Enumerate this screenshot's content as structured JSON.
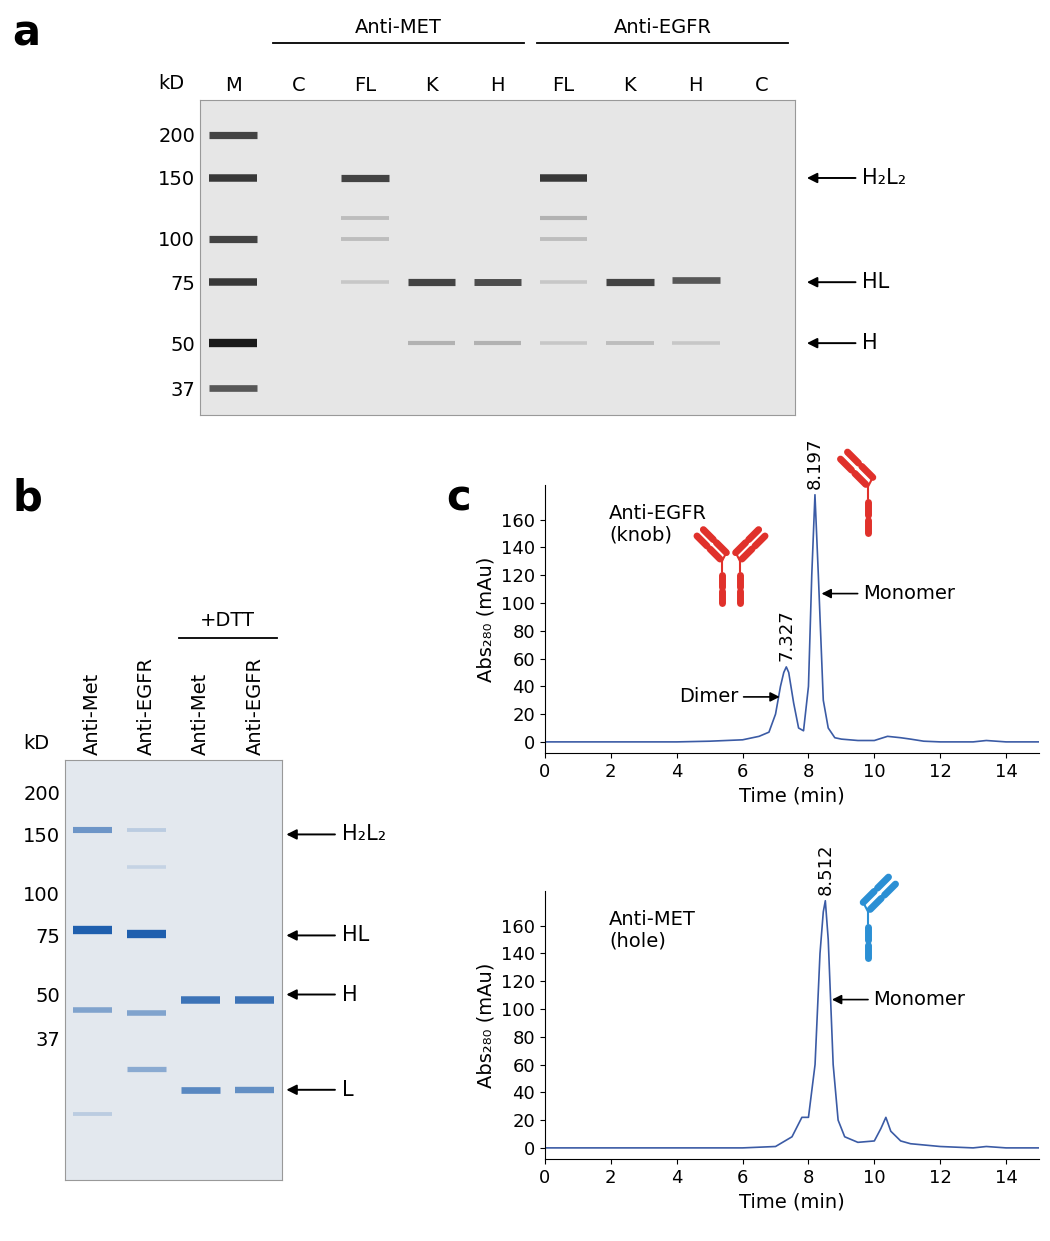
{
  "chart_data": [
    {
      "panel": "a",
      "type": "gel",
      "ylabel": "kD",
      "categories": [
        "M",
        "C",
        "FL",
        "K",
        "H",
        "FL",
        "K",
        "H",
        "C"
      ],
      "lane_groups": [
        {
          "label": "Anti-MET",
          "first": 1,
          "last": 4
        },
        {
          "label": "Anti-EGFR",
          "first": 5,
          "last": 8
        }
      ],
      "log": "y",
      "ylim": [
        31,
        252
      ],
      "yticks": [
        37,
        50,
        75,
        100,
        150,
        200
      ],
      "color": "#1a1a1a",
      "bands": [
        {
          "lane": 0,
          "kd": 200,
          "intensity": 0.8
        },
        {
          "lane": 0,
          "kd": 150,
          "intensity": 0.85
        },
        {
          "lane": 0,
          "kd": 100,
          "intensity": 0.8
        },
        {
          "lane": 0,
          "kd": 75,
          "intensity": 0.85
        },
        {
          "lane": 0,
          "kd": 50,
          "intensity": 1.0
        },
        {
          "lane": 0,
          "kd": 37,
          "intensity": 0.7
        },
        {
          "lane": 2,
          "kd": 150,
          "intensity": 0.8
        },
        {
          "lane": 2,
          "kd": 115,
          "intensity": 0.2
        },
        {
          "lane": 2,
          "kd": 100,
          "intensity": 0.2
        },
        {
          "lane": 2,
          "kd": 75,
          "intensity": 0.15
        },
        {
          "lane": 3,
          "kd": 75,
          "intensity": 0.8
        },
        {
          "lane": 3,
          "kd": 50,
          "intensity": 0.25
        },
        {
          "lane": 4,
          "kd": 75,
          "intensity": 0.75
        },
        {
          "lane": 4,
          "kd": 50,
          "intensity": 0.25
        },
        {
          "lane": 5,
          "kd": 150,
          "intensity": 0.85
        },
        {
          "lane": 5,
          "kd": 115,
          "intensity": 0.25
        },
        {
          "lane": 5,
          "kd": 100,
          "intensity": 0.2
        },
        {
          "lane": 5,
          "kd": 75,
          "intensity": 0.15
        },
        {
          "lane": 5,
          "kd": 50,
          "intensity": 0.15
        },
        {
          "lane": 6,
          "kd": 75,
          "intensity": 0.8
        },
        {
          "lane": 6,
          "kd": 50,
          "intensity": 0.2
        },
        {
          "lane": 7,
          "kd": 76,
          "intensity": 0.7
        },
        {
          "lane": 7,
          "kd": 50,
          "intensity": 0.15
        }
      ],
      "band_labels": [
        {
          "text": "H₂L₂",
          "kd": 150
        },
        {
          "text": "HL",
          "kd": 75
        },
        {
          "text": "H",
          "kd": 50
        }
      ]
    },
    {
      "panel": "b",
      "type": "gel",
      "ylabel": "kD",
      "categories": [
        "Anti-Met",
        "Anti-EGFR",
        "Anti-Met",
        "Anti-EGFR"
      ],
      "lane_groups": [
        {
          "label": "+DTT",
          "first": 2,
          "last": 3
        }
      ],
      "log": "y",
      "ylim": [
        14,
        250
      ],
      "yticks": [
        37,
        50,
        75,
        100,
        150,
        200
      ],
      "color": "#1f5fae",
      "bands": [
        {
          "lane": 0,
          "kd": 155,
          "intensity": 0.6
        },
        {
          "lane": 0,
          "kd": 78,
          "intensity": 1.0
        },
        {
          "lane": 0,
          "kd": 45,
          "intensity": 0.5
        },
        {
          "lane": 0,
          "kd": 22,
          "intensity": 0.2
        },
        {
          "lane": 1,
          "kd": 155,
          "intensity": 0.2
        },
        {
          "lane": 1,
          "kd": 120,
          "intensity": 0.15
        },
        {
          "lane": 1,
          "kd": 76,
          "intensity": 1.0
        },
        {
          "lane": 1,
          "kd": 44,
          "intensity": 0.5
        },
        {
          "lane": 1,
          "kd": 30,
          "intensity": 0.45
        },
        {
          "lane": 2,
          "kd": 48,
          "intensity": 0.85
        },
        {
          "lane": 2,
          "kd": 26,
          "intensity": 0.7
        },
        {
          "lane": 3,
          "kd": 48,
          "intensity": 0.85
        },
        {
          "lane": 3,
          "kd": 26,
          "intensity": 0.65
        }
      ],
      "band_labels": [
        {
          "text": "H₂L₂",
          "kd": 150
        },
        {
          "text": "HL",
          "kd": 75
        },
        {
          "text": "H",
          "kd": 50
        },
        {
          "text": "L",
          "kd": 26
        }
      ]
    },
    {
      "panel": "c",
      "type": "line",
      "title": "Anti-EGFR\n(knob)",
      "xlabel": "Time (min)",
      "ylabel": "Abs₂₈₀ (mAu)",
      "color": "#3b5ba5",
      "x": [
        0,
        1,
        2,
        3,
        4,
        5,
        6,
        6.5,
        6.8,
        7.0,
        7.15,
        7.25,
        7.327,
        7.4,
        7.55,
        7.7,
        7.85,
        8.0,
        8.1,
        8.197,
        8.3,
        8.45,
        8.6,
        8.8,
        9.0,
        9.5,
        10.0,
        10.4,
        10.8,
        11.1,
        11.5,
        12,
        13,
        13.4,
        14,
        15
      ],
      "values": [
        0,
        0,
        0,
        0,
        0,
        0.5,
        1.5,
        4,
        7,
        20,
        40,
        50,
        54,
        50,
        28,
        10,
        8,
        40,
        120,
        178,
        120,
        30,
        10,
        3,
        2,
        1,
        1,
        4,
        3,
        2,
        0.5,
        0,
        0,
        1,
        0,
        0
      ],
      "xlim": [
        0,
        15
      ],
      "xticks": [
        0,
        2,
        4,
        6,
        8,
        10,
        12,
        14
      ],
      "ylim": [
        -8,
        185
      ],
      "yticks": [
        0,
        20,
        40,
        60,
        80,
        100,
        120,
        140,
        160
      ],
      "peaks": [
        {
          "time": 7.327,
          "height": 54,
          "annotation": "Dimer"
        },
        {
          "time": 8.197,
          "height": 178,
          "annotation": "Monomer"
        }
      ]
    },
    {
      "type": "line",
      "title": "Anti-MET\n(hole)",
      "xlabel": "Time (min)",
      "ylabel": "Abs₂₈₀ (mAu)",
      "color": "#3b5ba5",
      "x": [
        0,
        1,
        2,
        3,
        4,
        5,
        6,
        7,
        7.5,
        7.8,
        8.0,
        8.2,
        8.35,
        8.45,
        8.512,
        8.6,
        8.75,
        8.9,
        9.1,
        9.5,
        10.0,
        10.2,
        10.35,
        10.5,
        10.8,
        11.1,
        12,
        13,
        13.4,
        14,
        15
      ],
      "values": [
        0,
        0,
        0,
        0,
        0,
        0,
        0,
        1,
        8,
        22,
        22,
        60,
        140,
        170,
        178,
        150,
        60,
        20,
        8,
        4,
        5,
        14,
        22,
        12,
        5,
        3,
        1,
        0,
        1,
        0,
        0
      ],
      "xlim": [
        0,
        15
      ],
      "xticks": [
        0,
        2,
        4,
        6,
        8,
        10,
        12,
        14
      ],
      "ylim": [
        -8,
        185
      ],
      "yticks": [
        0,
        20,
        40,
        60,
        80,
        100,
        120,
        140,
        160
      ],
      "peaks": [
        {
          "time": 8.512,
          "height": 178,
          "annotation": "Monomer"
        }
      ]
    }
  ]
}
